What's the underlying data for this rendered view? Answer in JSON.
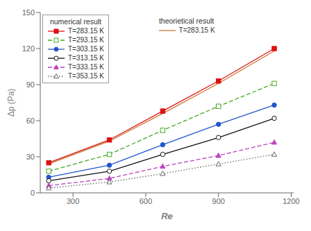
{
  "chart_data": {
    "type": "line",
    "x": [
      200,
      450,
      670,
      900,
      1130
    ],
    "xlabel": "Re",
    "ylabel": "Δp (Pa)",
    "xlim": [
      165,
      1210
    ],
    "ylim": [
      0,
      150
    ],
    "xticks": [
      300,
      600,
      900,
      1200
    ],
    "yticks": [
      0,
      30,
      60,
      90,
      120,
      150
    ],
    "grid": false,
    "legend": "upper left",
    "series": [
      {
        "name": "T=283.15 K",
        "legend_title": "numerical result",
        "color": "#dd1111",
        "line_style": "solid",
        "marker": "filled-square",
        "values": [
          25,
          44,
          68,
          93,
          120
        ]
      },
      {
        "name": "T=293.15 K",
        "legend_title": "numerical result",
        "color": "#44aa22",
        "line_style": "dashed",
        "marker": "open-square",
        "values": [
          18,
          32,
          52,
          72,
          91
        ]
      },
      {
        "name": "T=303.15 K",
        "legend_title": "numerical result",
        "color": "#2255cc",
        "line_style": "solid",
        "marker": "filled-circle",
        "values": [
          13,
          23,
          40,
          57,
          73
        ]
      },
      {
        "name": "T=313.15 K",
        "legend_title": "numerical result",
        "color": "#111111",
        "line_style": "solid",
        "marker": "open-circle",
        "values": [
          10,
          18,
          32,
          46,
          62
        ]
      },
      {
        "name": "T=333.15 K",
        "legend_title": "numerical result",
        "color": "#bb44bb",
        "line_style": "dashed",
        "marker": "filled-triangle",
        "values": [
          6,
          12,
          22,
          31,
          42
        ]
      },
      {
        "name": "T=353.15 K",
        "legend_title": "numerical result",
        "color": "#666666",
        "line_style": "dotted",
        "marker": "open-triangle",
        "values": [
          4,
          9,
          16,
          24,
          32
        ]
      },
      {
        "name": "T=283.15 K",
        "legend_title": "theorietical result",
        "color": "#cc7733",
        "line_style": "solid",
        "marker": "none",
        "values": [
          24,
          43,
          66,
          91,
          118
        ]
      }
    ]
  }
}
